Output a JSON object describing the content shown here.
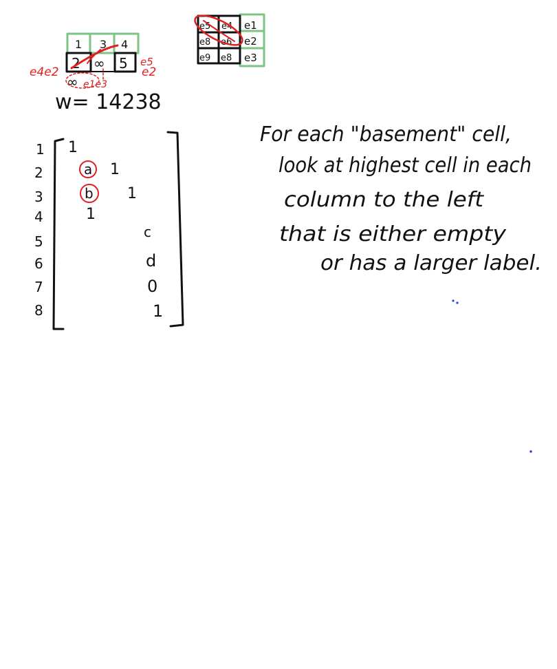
{
  "top_tableau": {
    "row1": [
      "1",
      "3",
      "4"
    ],
    "row2": [
      "2",
      "∞",
      "5"
    ],
    "below_cell": "∞",
    "red_labels": [
      "e4e2",
      "e5",
      "e2"
    ],
    "red_below_label": "e1e3"
  },
  "weight": "w= 14238",
  "grid": {
    "rows": [
      [
        "e5",
        "e4",
        "e1"
      ],
      [
        "e8",
        "e6",
        "e2"
      ],
      [
        "e9",
        "e8",
        "e3"
      ]
    ]
  },
  "matrix": {
    "row_labels": [
      "1",
      "2",
      "3",
      "4",
      "5",
      "6",
      "7",
      "8"
    ],
    "entries": {
      "r1c1": "1",
      "r2a": "a",
      "r2c2": "1",
      "r3b": "b",
      "r3c3": "1",
      "r4": "1",
      "c": "c",
      "d": "d",
      "zero": "0",
      "one": "1"
    }
  },
  "note": {
    "lines": [
      "For each \"basement\" cell,",
      "look at highest cell in each",
      "column to the left",
      "that is either empty",
      "or has a larger label."
    ]
  },
  "colors": {
    "ink": "#111111",
    "red": "#e02020",
    "green": "#7cc483",
    "blue": "#1f4fd1"
  }
}
